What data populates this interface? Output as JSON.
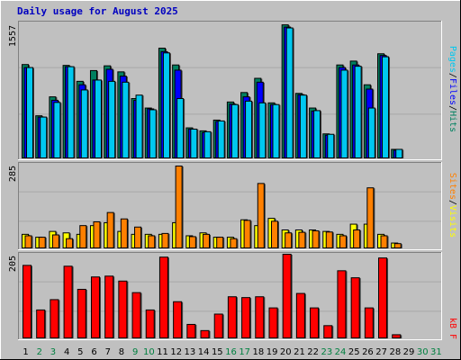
{
  "chart_data": {
    "type": "bar",
    "title": "Daily usage for August 2025",
    "days": [
      "1",
      "2",
      "3",
      "4",
      "5",
      "6",
      "7",
      "8",
      "9",
      "10",
      "11",
      "12",
      "13",
      "14",
      "15",
      "16",
      "17",
      "18",
      "19",
      "20",
      "21",
      "22",
      "23",
      "24",
      "25",
      "26",
      "27",
      "28",
      "29",
      "30",
      "31"
    ],
    "weekend_color": "#008040",
    "weekday_color": "#000000",
    "panels": {
      "hits_files_pages": {
        "max_label": "1557",
        "max": 1557,
        "series": [
          {
            "name": "Hits",
            "color": "#008060",
            "values": [
              1095,
              500,
              720,
              1085,
              900,
              1025,
              1080,
              1010,
              700,
              590,
              1285,
              1090,
              360,
              325,
              450,
              660,
              770,
              935,
              650,
              1556,
              760,
              590,
              290,
              1090,
              1135,
              860,
              1220,
              110,
              0,
              0,
              0
            ]
          },
          {
            "name": "Files",
            "color": "#0000ff",
            "values": [
              1060,
              485,
              680,
              1070,
              860,
              915,
              1040,
              960,
              680,
              580,
              1245,
              1030,
              345,
              305,
              435,
              635,
              720,
              890,
              630,
              1530,
              745,
              555,
              275,
              1060,
              1090,
              810,
              1200,
              100,
              0,
              0,
              0
            ]
          },
          {
            "name": "Pages",
            "color": "#00c8f0",
            "values": [
              1060,
              485,
              655,
              1070,
              800,
              915,
              900,
              890,
              740,
              570,
              1230,
              700,
              345,
              315,
              440,
              630,
              670,
              650,
              630,
              1520,
              740,
              560,
              285,
              1030,
              1075,
              590,
              1185,
              110,
              0,
              0,
              0
            ]
          }
        ],
        "label_order": [
          "Pages",
          "/",
          "Files",
          "/",
          "Hits"
        ],
        "label_colors": {
          "Pages": "#00c8f0",
          "Files": "#0000ff",
          "Hits": "#008060",
          "/": "#000000"
        }
      },
      "sites_visits": {
        "max_label": "285",
        "max": 285,
        "series": [
          {
            "name": "Visits",
            "color": "#ffff00",
            "values": [
              50,
              40,
              60,
              55,
              50,
              80,
              90,
              60,
              50,
              50,
              50,
              90,
              45,
              55,
              40,
              40,
              100,
              80,
              105,
              65,
              65,
              65,
              60,
              50,
              85,
              85,
              50,
              20,
              0,
              0,
              0
            ]
          },
          {
            "name": "Sites",
            "color": "#ff8000",
            "values": [
              45,
              40,
              48,
              35,
              80,
              93,
              125,
              103,
              75,
              45,
              53,
              285,
              42,
              50,
              40,
              35,
              98,
              225,
              95,
              55,
              57,
              62,
              58,
              45,
              65,
              210,
              45,
              18,
              0,
              0,
              0
            ]
          }
        ],
        "label_order": [
          "Sites",
          "/",
          "Visits"
        ],
        "label_colors": {
          "Sites": "#ff8000",
          "Visits": "#ffff00",
          "/": "#000000"
        }
      },
      "kbytes": {
        "max_label": "205",
        "max": 205,
        "series": [
          {
            "name": "KBytes",
            "color": "#ff0000",
            "values": [
              178,
              70,
              95,
              176,
              120,
              150,
              152,
              140,
              112,
              70,
              198,
              90,
              35,
              20,
              60,
              102,
              100,
              102,
              75,
              205,
              110,
              75,
              32,
              165,
              148,
              75,
              196,
              10,
              0,
              0,
              0
            ]
          }
        ],
        "label_text": "kB F",
        "label_color": "#ff0000"
      }
    }
  }
}
